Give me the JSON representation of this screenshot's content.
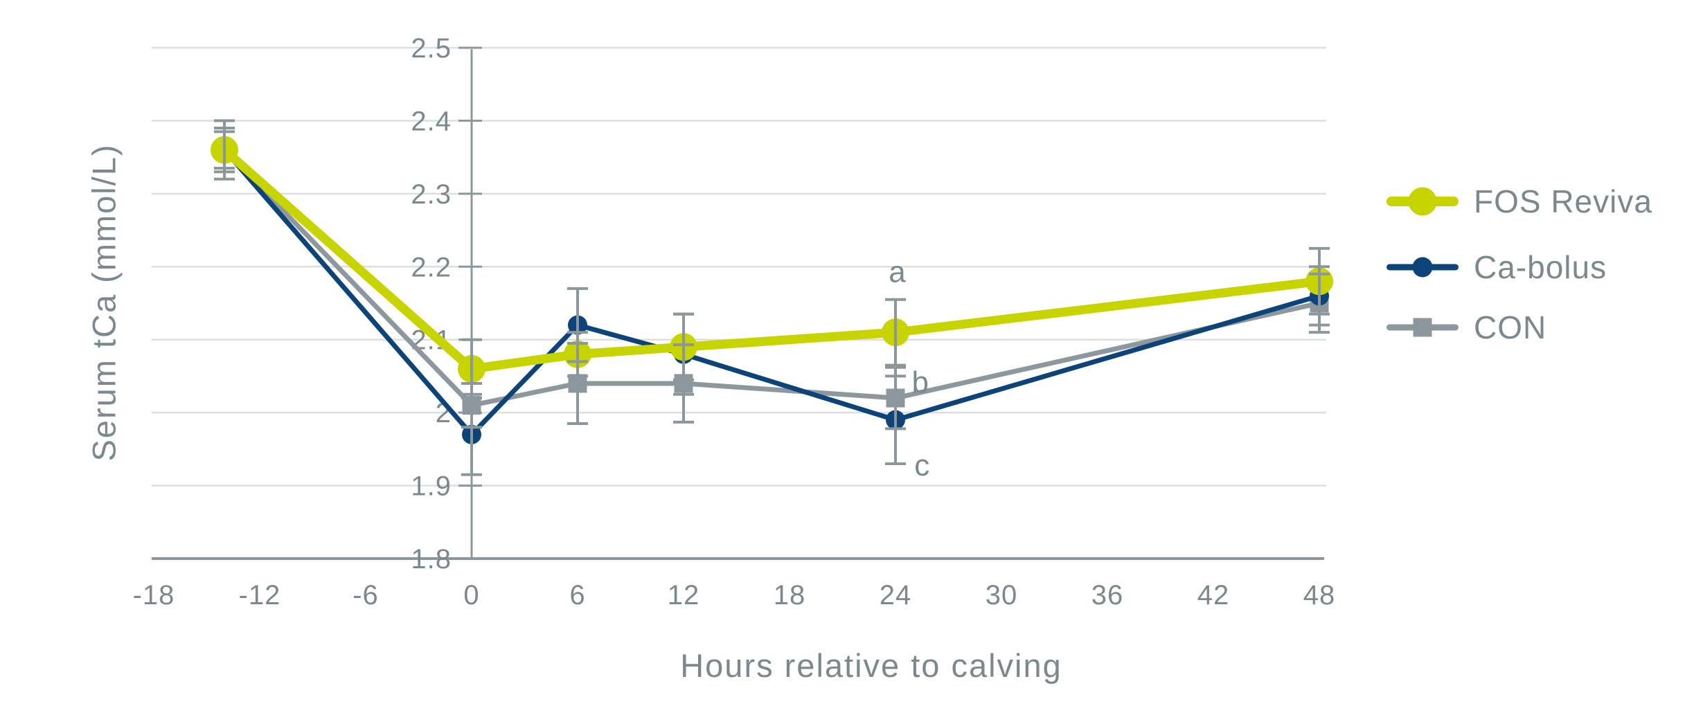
{
  "chart_data": {
    "type": "line",
    "title": "",
    "xlabel": "Hours relative to calving",
    "ylabel": "Serum tCa (mmol/L)",
    "xlim": [
      -18.2,
      48.5
    ],
    "ylim": [
      1.8,
      2.5
    ],
    "x_ticks": [
      -18,
      -12,
      -6,
      0,
      6,
      12,
      18,
      24,
      30,
      36,
      42,
      48
    ],
    "y_ticks": [
      2.5,
      2.4,
      2.3,
      2.2,
      2.1,
      2.0,
      1.9,
      1.8
    ],
    "y_tick_labels": [
      "2.5",
      "2.4",
      "2.3",
      "2.2",
      "2.1",
      "2",
      "1.9",
      "1.8"
    ],
    "grid": "horizontal",
    "legend_position": "right",
    "x": [
      -14,
      0,
      6,
      12,
      24,
      48
    ],
    "series": [
      {
        "name": "FOS Reviva",
        "color": "#c8d400",
        "marker": "circle",
        "marker_size": 20,
        "line_width": 13,
        "values": [
          2.36,
          2.06,
          2.08,
          2.09,
          2.11,
          2.18
        ],
        "err": [
          0.04,
          0.04,
          0.03,
          0.045,
          0.045,
          0.045
        ]
      },
      {
        "name": "Ca-bolus",
        "color": "#0c4378",
        "marker": "circle",
        "marker_size": 14,
        "line_width": 7,
        "values": [
          2.36,
          1.97,
          2.12,
          2.08,
          1.99,
          2.16
        ],
        "err": [
          0.025,
          0.055,
          0.05,
          0.055,
          0.06,
          0.04
        ]
      },
      {
        "name": "CON",
        "color": "#8d989e",
        "marker": "square",
        "marker_size": 13.5,
        "line_width": 7,
        "values": [
          2.36,
          2.01,
          2.04,
          2.04,
          2.02,
          2.15
        ],
        "err": [
          0.03,
          0.03,
          0.055,
          0.053,
          0.042,
          0.04
        ]
      }
    ],
    "annotations": [
      {
        "text": "a",
        "x": 24.1,
        "y": 2.193
      },
      {
        "text": "b",
        "x": 25.4,
        "y": 2.042
      },
      {
        "text": "c",
        "x": 25.5,
        "y": 1.928
      }
    ]
  },
  "colors": {
    "background": "#ffffff",
    "grid_light": "#dcdfe0",
    "axis": "#8c979c",
    "error_bar": "#8c979c",
    "text": "#7b888e",
    "fos_reviva": "#c8d400",
    "ca_bolus": "#0c4378",
    "con": "#8d989e"
  }
}
